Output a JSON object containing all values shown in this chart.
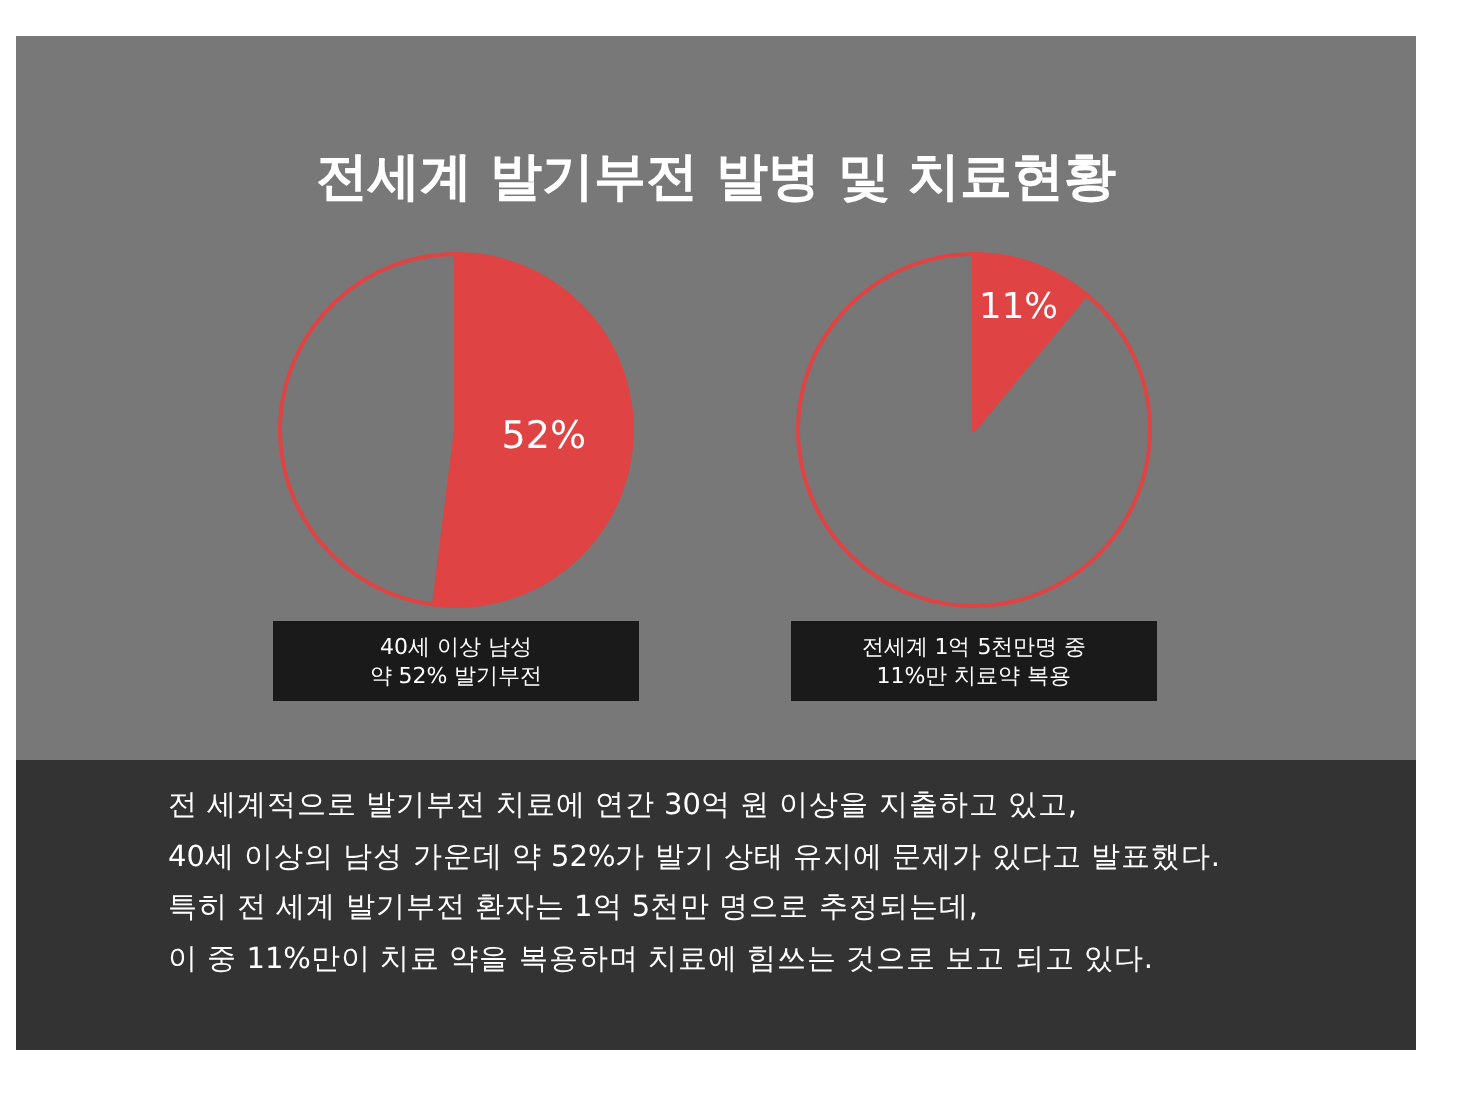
{
  "chart_data": [
    {
      "type": "other",
      "title": "전세계 발기부전 발병 및 치료현황"
    },
    {
      "type": "pie",
      "categories": [
        null,
        null
      ],
      "values": [
        52,
        48
      ],
      "colors": [
        "#e04343",
        "#777777"
      ],
      "value_labels": [
        "52%",
        null
      ],
      "annotations": [
        "40세 이상 남성\n약 52% 발기부전"
      ]
    },
    {
      "type": "pie",
      "categories": [
        null,
        null
      ],
      "values": [
        11,
        89
      ],
      "colors": [
        "#e04343",
        "#777777"
      ],
      "value_labels": [
        "11%",
        null
      ],
      "annotations": [
        "전세계 1억 5천만명 중\n11%만 치료약 복용"
      ]
    },
    {
      "type": "other",
      "annotations": [
        "전 세계적으로 발기부전 치료에 연간 30억 원 이상을 지출하고 있고,",
        "40세 이상의 남성 가운데 약 52%가 발기 상태 유지에 문제가 있다고 발표했다.",
        "특히 전 세계 발기부전 환자는 1억 5천만 명으로 추정되는데,",
        "이 중 11%만이 치료 약을 복용하며 치료에 힘쓰는 것으로 보고 되고 있다."
      ]
    }
  ]
}
